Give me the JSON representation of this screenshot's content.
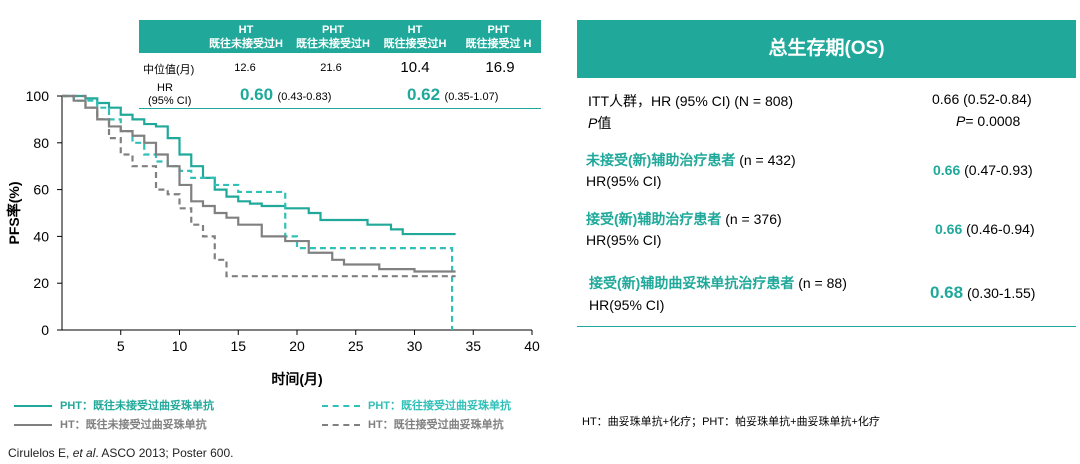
{
  "table": {
    "headers": [
      {
        "l1": "HT",
        "l2": "既往未接受过H"
      },
      {
        "l1": "PHT",
        "l2": "既往未接受过H"
      },
      {
        "l1": "HT",
        "l2": "既往接受过H"
      },
      {
        "l1": "PHT",
        "l2": "既往接受过 H"
      }
    ],
    "median_label": "中位值(月)",
    "medians": [
      "12.6",
      "21.6",
      "10.4",
      "16.9"
    ],
    "hr_label_1": "HR",
    "hr_label_2": "(95% CI)",
    "hr_no_prior_value": "0.60",
    "hr_no_prior_ci": "(0.43-0.83)",
    "hr_prior_value": "0.62",
    "hr_prior_ci": "(0.35-1.07)"
  },
  "chart_data": {
    "type": "line",
    "xlabel": "时间(月)",
    "ylabel": "PFS率(%)",
    "xlim": [
      0,
      40
    ],
    "ylim": [
      0,
      100
    ],
    "xticks": [
      "5",
      "10",
      "15",
      "20",
      "25",
      "30",
      "35",
      "40"
    ],
    "yticks": [
      "0",
      "20",
      "40",
      "60",
      "80",
      "100"
    ],
    "series": [
      {
        "name": "PHT：既往未接受过曲妥珠单抗",
        "color": "#20a99a",
        "dash": false,
        "x": [
          0,
          1,
          2,
          3,
          4,
          5,
          6,
          7,
          8,
          9,
          10,
          11,
          12,
          13,
          14,
          15,
          16,
          17,
          19,
          21,
          22,
          26,
          28,
          29,
          33.5
        ],
        "y": [
          100,
          100,
          99,
          97,
          95,
          92,
          90,
          88,
          87,
          82,
          75,
          70,
          65,
          60,
          57,
          55,
          54,
          53,
          52,
          50,
          47,
          45,
          43,
          41,
          41
        ]
      },
      {
        "name": "PHT：既往接受过曲妥珠单抗",
        "color": "#30c0b8",
        "dash": true,
        "x": [
          0,
          1,
          3,
          4,
          5,
          6,
          7,
          8,
          9,
          10,
          11,
          13,
          15,
          19,
          20,
          22,
          33,
          33.2
        ],
        "y": [
          100,
          98,
          95,
          90,
          85,
          80,
          75,
          72,
          70,
          68,
          65,
          62,
          59,
          40,
          35,
          35,
          35,
          0
        ]
      },
      {
        "name": "HT：既往未接受过曲妥珠单抗",
        "color": "#808080",
        "dash": false,
        "x": [
          0,
          1,
          2,
          3,
          4,
          5,
          6,
          7,
          8,
          9,
          10,
          11,
          12,
          13,
          14,
          15,
          17,
          19,
          21,
          23,
          24,
          27,
          30,
          33.5
        ],
        "y": [
          100,
          98,
          95,
          90,
          87,
          85,
          83,
          80,
          75,
          70,
          62,
          55,
          53,
          50,
          48,
          45,
          40,
          38,
          33,
          30,
          28,
          26,
          25,
          25
        ]
      },
      {
        "name": "HT：既往接受过曲妥珠单抗",
        "color": "#808080",
        "dash": true,
        "x": [
          0,
          2,
          3,
          4,
          5,
          6,
          8,
          9,
          10,
          11,
          12,
          13,
          14,
          33.5
        ],
        "y": [
          100,
          95,
          90,
          82,
          75,
          70,
          60,
          58,
          52,
          45,
          40,
          30,
          23,
          23
        ]
      }
    ]
  },
  "legend": [
    {
      "label": "PHT：既往未接受过曲妥珠单抗",
      "color": "#20a99a",
      "dash": false
    },
    {
      "label": "PHT：既往接受过曲妥珠单抗",
      "color": "#30c0b8",
      "dash": true
    },
    {
      "label": "HT：既往未接受过曲妥珠单抗",
      "color": "#808080",
      "dash": false
    },
    {
      "label": "HT：既往接受过曲妥珠单抗",
      "color": "#808080",
      "dash": true
    }
  ],
  "citation": {
    "pre": "Cirulelos E, ",
    "etal": "et al",
    "post": ". ASCO 2013; Poster 600."
  },
  "os_panel": {
    "title": "总生存期(OS)",
    "itt_label": "ITT人群，HR (95% CI) (N = 808)",
    "itt_hr": "0.66 (0.52-0.84)",
    "p_label_p": "P",
    "p_label_rest": "值",
    "p_value_p": "P",
    "p_value_rest": "= 0.0008",
    "no_prior_title": "未接受(新)辅助治疗患者",
    "no_prior_n": " (n = 432)",
    "no_prior_hr_label": "HR(95% CI)",
    "no_prior_hr_value": "0.66",
    "no_prior_hr_ci": " (0.47-0.93)",
    "prior_title": "接受(新)辅助治疗患者",
    "prior_n": " (n = 376)",
    "prior_hr_label": "HR(95% CI)",
    "prior_hr_value": "0.66",
    "prior_hr_ci": " (0.46-0.94)",
    "trast_title": "接受(新)辅助曲妥珠单抗治疗患者",
    "trast_n": " (n = 88)",
    "trast_hr_label": "HR(95% CI)",
    "trast_hr_value": "0.68",
    "trast_hr_ci": " (0.30-1.55)"
  },
  "footnote": "HT：曲妥珠单抗+化疗；PHT：帕妥珠单抗+曲妥珠单抗+化疗"
}
